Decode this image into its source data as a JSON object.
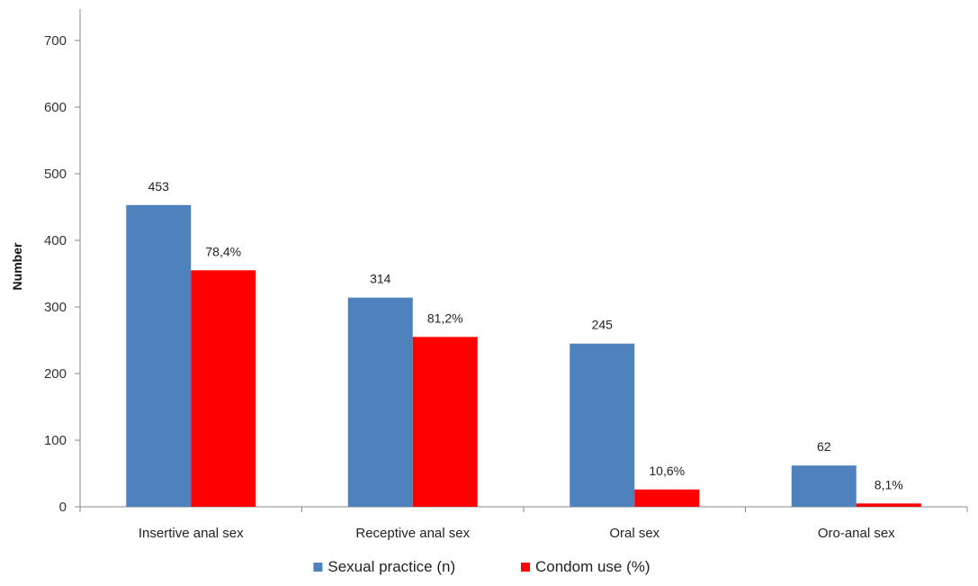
{
  "chart_data": {
    "type": "bar",
    "title": "",
    "xlabel": "",
    "ylabel": "Number",
    "ylim": [
      0,
      700
    ],
    "yticks": [
      0,
      100,
      200,
      300,
      400,
      500,
      600,
      700
    ],
    "grid": false,
    "legend_position": "bottom",
    "categories": [
      "Insertive anal sex",
      "Receptive anal sex",
      "Oral sex",
      "Oro-anal sex"
    ],
    "series": [
      {
        "name": "Sexual practice (n)",
        "color": "#4F81BD",
        "values": [
          453,
          314,
          245,
          62
        ],
        "labels": [
          "453",
          "314",
          "245",
          "62"
        ]
      },
      {
        "name": "Condom use (%)",
        "color": "#FF0000",
        "values": [
          355,
          255,
          26,
          5
        ],
        "labels": [
          "78,4%",
          "81,2%",
          "10,6%",
          "8,1%"
        ]
      }
    ]
  }
}
